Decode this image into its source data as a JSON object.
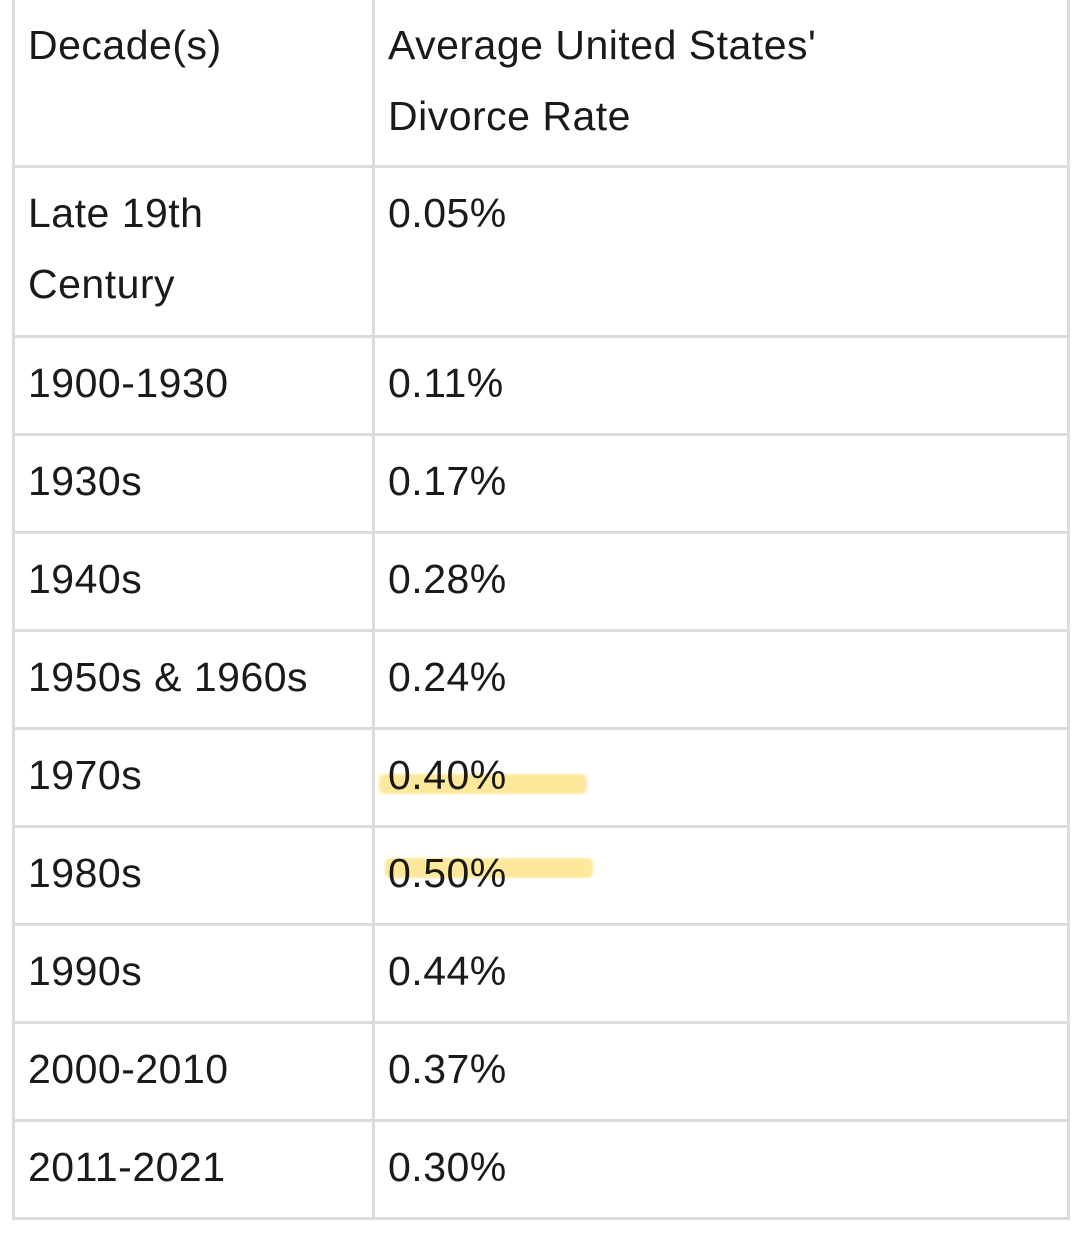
{
  "table": {
    "header": [
      "Decade(s)",
      "Average United States' Divorce Rate"
    ],
    "rows": [
      [
        "Late 19th Century",
        "0.05%"
      ],
      [
        "1900-1930",
        "0.11%"
      ],
      [
        "1930s",
        "0.17%"
      ],
      [
        "1940s",
        "0.28%"
      ],
      [
        "1950s & 1960s",
        "0.24%"
      ],
      [
        "1970s",
        "0.40%"
      ],
      [
        "1980s",
        "0.50%"
      ],
      [
        "1990s",
        "0.44%"
      ],
      [
        "2000-2010",
        "0.37%"
      ],
      [
        "2011-2021",
        "0.30%"
      ]
    ]
  }
}
